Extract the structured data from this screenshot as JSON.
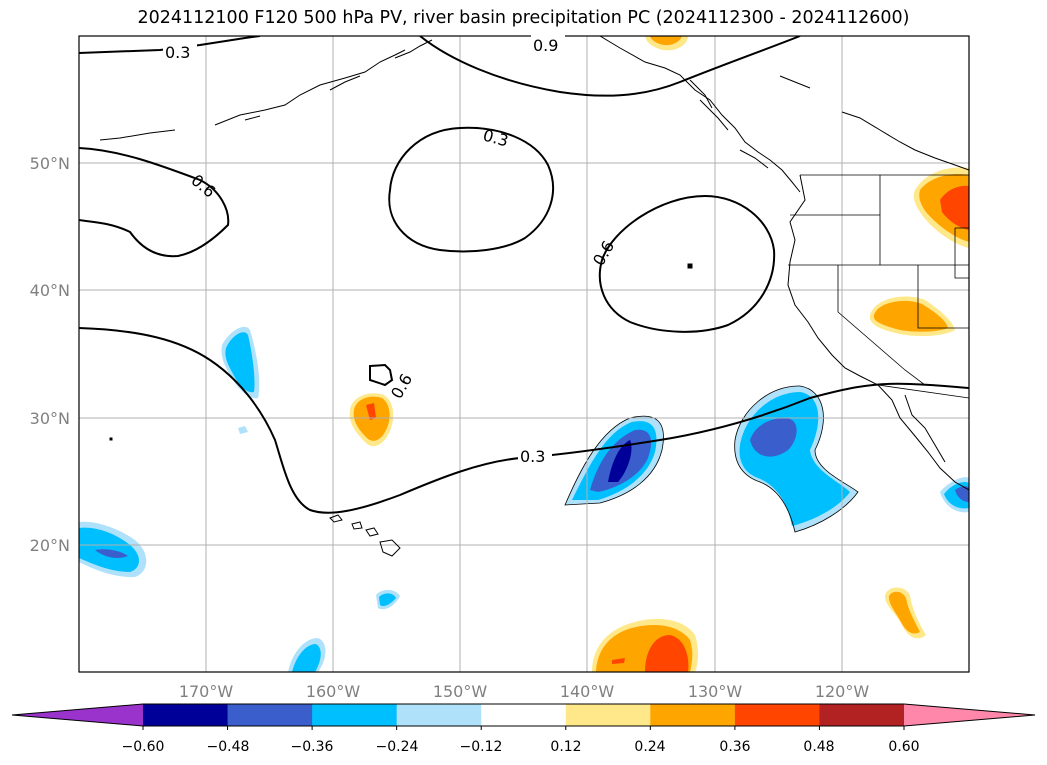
{
  "title": "2024112100 F120 500 hPa PV, river basin precipitation PC (2024112300 - 2024112600)",
  "latitude_labels": [
    "50°N",
    "40°N",
    "30°N",
    "20°N"
  ],
  "longitude_labels": [
    "170°W",
    "160°W",
    "150°W",
    "140°W",
    "130°W",
    "120°W"
  ],
  "contour_labels": [
    "0.3",
    "0.9",
    "0.3",
    "0.6",
    "0.6",
    "0.6",
    "0.3"
  ],
  "colorbar": {
    "tick_labels": [
      "−0.60",
      "−0.48",
      "−0.36",
      "−0.24",
      "−0.12",
      "0.12",
      "0.24",
      "0.36",
      "0.48",
      "0.60"
    ],
    "colors": [
      "#9933cc",
      "#000099",
      "#3a5fcd",
      "#00bfff",
      "#afe2fa",
      "#ffffff",
      "#ffe88a",
      "#ffa500",
      "#ff4500",
      "#b22222",
      "#ff88aa"
    ]
  },
  "map": {
    "projection": "equirectangular",
    "extent": {
      "lon_min": -180,
      "lon_max": -110,
      "lat_min": 10,
      "lat_max": 60
    },
    "gridlines": true,
    "contour_levels": [
      "0.3",
      "0.6",
      "0.9"
    ]
  }
}
